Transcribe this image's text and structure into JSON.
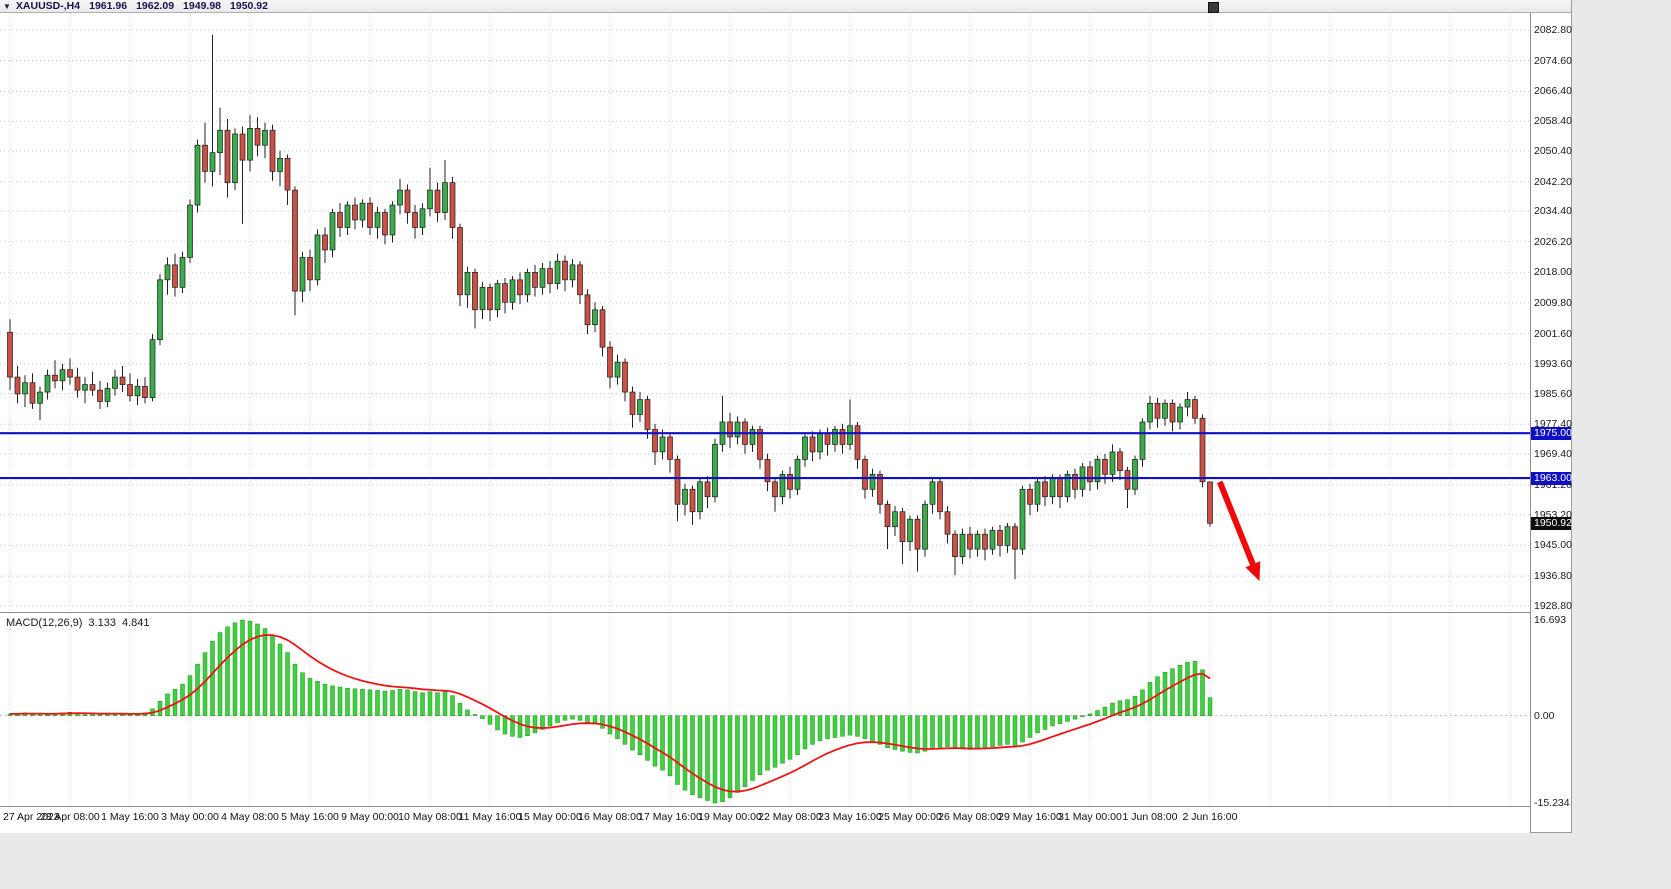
{
  "header": {
    "menu_icon": "▼",
    "symbol_period": "XAUUSD-,H4",
    "open": "1961.96",
    "high": "1962.09",
    "low": "1949.98",
    "close": "1950.92"
  },
  "indicator": {
    "name": "MACD(12,26,9)",
    "macd_value": "3.133",
    "signal_value": "4.841"
  },
  "colors": {
    "bull": "#3aad4a",
    "bear": "#cd5045",
    "candle_outline": "#1c1c1c",
    "wick": "#222222",
    "grid": "#c9c9c9",
    "level_blue": "#0f0fc4",
    "badge_blue_bg": "#0f0fc4",
    "badge_black_bg": "#0d0d0d",
    "hist_green": "#3fd13f",
    "hist_outline": "#1e8f1e",
    "signal_red": "#ee1414",
    "arrow_red": "#f20707"
  },
  "chart_data": [
    {
      "type": "candlestick",
      "symbol": "XAUUSD-",
      "timeframe": "H4",
      "ohlc_display": {
        "open": 1961.96,
        "high": 1962.09,
        "low": 1949.98,
        "close": 1950.92
      },
      "y_axis": {
        "max": 2082.8,
        "min": 1928.8,
        "ticks": [
          "2082.80",
          "2074.60",
          "2066.40",
          "2058.40",
          "2050.40",
          "2042.20",
          "2034.40",
          "2026.20",
          "2018.00",
          "2009.80",
          "2001.60",
          "1993.60",
          "1985.60",
          "1977.40",
          "1969.40",
          "1961.20",
          "1953.20",
          "1945.00",
          "1936.80",
          "1928.80"
        ]
      },
      "x_labels": [
        "27 Apr 2023",
        "28 Apr 08:00",
        "1 May 16:00",
        "3 May 00:00",
        "4 May 08:00",
        "5 May 16:00",
        "9 May 00:00",
        "10 May 08:00",
        "11 May 16:00",
        "15 May 00:00",
        "16 May 08:00",
        "17 May 16:00",
        "19 May 00:00",
        "22 May 08:00",
        "23 May 16:00",
        "25 May 00:00",
        "26 May 08:00",
        "29 May 16:00",
        "31 May 00:00",
        "1 Jun 08:00",
        "2 Jun 16:00"
      ],
      "bars_per_label": 8,
      "levels": [
        {
          "value": 1975.0,
          "label": "1975.00"
        },
        {
          "value": 1963.0,
          "label": "1963.00"
        }
      ],
      "current_price": {
        "value": 1950.92,
        "label": "1950.92"
      },
      "annotations": {
        "arrow": {
          "bar_from": 161.3,
          "price_from": 1962.0,
          "bar_to": 166.6,
          "price_to": 1935.5
        }
      },
      "candles": [
        [
          2002,
          2005.5,
          1986.5,
          1990
        ],
        [
          1990,
          1993,
          1983,
          1985.5
        ],
        [
          1985.5,
          1990.5,
          1982,
          1988.5
        ],
        [
          1988.5,
          1991,
          1981.5,
          1983
        ],
        [
          1983,
          1987.5,
          1978.5,
          1986
        ],
        [
          1986,
          1992,
          1984,
          1990.5
        ],
        [
          1990.5,
          1994.5,
          1987,
          1989
        ],
        [
          1989,
          1993.5,
          1986.5,
          1992
        ],
        [
          1992,
          1995,
          1988,
          1990
        ],
        [
          1990,
          1992.5,
          1984.5,
          1986.5
        ],
        [
          1986.5,
          1990,
          1983,
          1988
        ],
        [
          1988,
          1991.5,
          1985,
          1986.5
        ],
        [
          1986.5,
          1989,
          1981.5,
          1983.5
        ],
        [
          1983.5,
          1988.5,
          1982,
          1987
        ],
        [
          1987,
          1992,
          1985,
          1990
        ],
        [
          1990,
          1993,
          1986,
          1988
        ],
        [
          1988,
          1991,
          1983.5,
          1985
        ],
        [
          1985,
          1989.5,
          1982.5,
          1987.5
        ],
        [
          1987.5,
          1990,
          1983,
          1984.5
        ],
        [
          1984.5,
          2001.5,
          1983.5,
          2000
        ],
        [
          2000,
          2017.5,
          1998.5,
          2016
        ],
        [
          2016,
          2022,
          2012,
          2020
        ],
        [
          2020,
          2023,
          2011.5,
          2014
        ],
        [
          2014,
          2023.5,
          2012.5,
          2022
        ],
        [
          2022,
          2037.5,
          2020.5,
          2036
        ],
        [
          2036,
          2053.5,
          2034,
          2052
        ],
        [
          2052,
          2058,
          2042,
          2045
        ],
        [
          2045,
          2081.5,
          2041,
          2050
        ],
        [
          2050,
          2062,
          2044,
          2056
        ],
        [
          2056,
          2059,
          2038,
          2042
        ],
        [
          2042,
          2056.5,
          2040,
          2055
        ],
        [
          2055,
          2057,
          2031,
          2048
        ],
        [
          2048,
          2060,
          2045,
          2056.5
        ],
        [
          2056.5,
          2059.5,
          2049,
          2052
        ],
        [
          2052,
          2058,
          2048.5,
          2056
        ],
        [
          2056,
          2057.5,
          2042.5,
          2045
        ],
        [
          2045,
          2050.5,
          2041,
          2048.5
        ],
        [
          2048.5,
          2049.5,
          2036,
          2040
        ],
        [
          2040,
          2041,
          2006.5,
          2013
        ],
        [
          2013,
          2023.5,
          2010,
          2022
        ],
        [
          2022,
          2024,
          2013,
          2016
        ],
        [
          2016,
          2029.5,
          2014.5,
          2028
        ],
        [
          2028,
          2030,
          2020.5,
          2024
        ],
        [
          2024,
          2035,
          2022,
          2034
        ],
        [
          2034,
          2036.5,
          2027.5,
          2030
        ],
        [
          2030,
          2037,
          2028,
          2036
        ],
        [
          2036,
          2038,
          2029.5,
          2032
        ],
        [
          2032,
          2037.5,
          2030,
          2036.5
        ],
        [
          2036.5,
          2038,
          2028,
          2030
        ],
        [
          2030,
          2035.5,
          2027,
          2034
        ],
        [
          2034,
          2035,
          2025.5,
          2028
        ],
        [
          2028,
          2037,
          2026,
          2036
        ],
        [
          2036,
          2043,
          2033.5,
          2040
        ],
        [
          2040,
          2041.5,
          2031,
          2034
        ],
        [
          2034,
          2036,
          2027,
          2030
        ],
        [
          2030,
          2036.5,
          2028,
          2035
        ],
        [
          2035,
          2046,
          2033,
          2040
        ],
        [
          2040,
          2042,
          2031.5,
          2034
        ],
        [
          2034,
          2048,
          2032,
          2042
        ],
        [
          2042,
          2043.5,
          2027,
          2030
        ],
        [
          2030,
          2031,
          2009,
          2012
        ],
        [
          2012,
          2019.5,
          2008.5,
          2018
        ],
        [
          2018,
          2019,
          2003,
          2008
        ],
        [
          2008,
          2015.5,
          2005.5,
          2014
        ],
        [
          2014,
          2015,
          2005,
          2008
        ],
        [
          2008,
          2016,
          2006,
          2015
        ],
        [
          2015,
          2016.5,
          2007,
          2010
        ],
        [
          2010,
          2017,
          2008,
          2016
        ],
        [
          2016,
          2018,
          2009.5,
          2012
        ],
        [
          2012,
          2019,
          2010,
          2018
        ],
        [
          2018,
          2020,
          2011.5,
          2014
        ],
        [
          2014,
          2020.5,
          2012,
          2019
        ],
        [
          2019,
          2021,
          2012.5,
          2015
        ],
        [
          2015,
          2023,
          2013.5,
          2021
        ],
        [
          2021,
          2022.5,
          2013,
          2016
        ],
        [
          2016,
          2021.5,
          2014,
          2020
        ],
        [
          2020,
          2021,
          2009.5,
          2012
        ],
        [
          2012,
          2013.5,
          2001.5,
          2004
        ],
        [
          2004,
          2010,
          2002,
          2008
        ],
        [
          2008,
          2009,
          1995.5,
          1998
        ],
        [
          1998,
          1999.5,
          1987,
          1990
        ],
        [
          1990,
          1996,
          1988,
          1994
        ],
        [
          1994,
          1995,
          1983.5,
          1986
        ],
        [
          1986,
          1987.5,
          1976.5,
          1980
        ],
        [
          1980,
          1986,
          1978,
          1984
        ],
        [
          1984,
          1985,
          1973.5,
          1976
        ],
        [
          1976,
          1977.5,
          1966.5,
          1970
        ],
        [
          1970,
          1976,
          1968,
          1974
        ],
        [
          1974,
          1975,
          1964.5,
          1968
        ],
        [
          1968,
          1969,
          1951.5,
          1956
        ],
        [
          1956,
          1961.5,
          1953,
          1960
        ],
        [
          1960,
          1961,
          1950.5,
          1954
        ],
        [
          1954,
          1963,
          1952,
          1962
        ],
        [
          1962,
          1963.5,
          1955,
          1958
        ],
        [
          1958,
          1973.5,
          1956.5,
          1972
        ],
        [
          1972,
          1985,
          1970,
          1978
        ],
        [
          1978,
          1980.5,
          1971,
          1974
        ],
        [
          1974,
          1979.5,
          1972,
          1978
        ],
        [
          1978,
          1979,
          1969.5,
          1972
        ],
        [
          1972,
          1977,
          1970,
          1976
        ],
        [
          1976,
          1977,
          1965.5,
          1968
        ],
        [
          1968,
          1969.5,
          1959.5,
          1962
        ],
        [
          1962,
          1963,
          1954,
          1958
        ],
        [
          1958,
          1965,
          1956,
          1964
        ],
        [
          1964,
          1966,
          1957.5,
          1960
        ],
        [
          1960,
          1969,
          1958.5,
          1968
        ],
        [
          1968,
          1975,
          1966,
          1974
        ],
        [
          1974,
          1975.5,
          1967.5,
          1970
        ],
        [
          1970,
          1976,
          1968,
          1975
        ],
        [
          1975,
          1976.5,
          1969,
          1972
        ],
        [
          1972,
          1977,
          1970,
          1976
        ],
        [
          1976,
          1977.5,
          1969.5,
          1972
        ],
        [
          1972,
          1984,
          1970.5,
          1977
        ],
        [
          1977,
          1978,
          1965.5,
          1968
        ],
        [
          1968,
          1969,
          1957.5,
          1960
        ],
        [
          1960,
          1965.5,
          1958,
          1964
        ],
        [
          1964,
          1965,
          1953.5,
          1956
        ],
        [
          1956,
          1957,
          1944,
          1950
        ],
        [
          1950,
          1955.5,
          1947.5,
          1954
        ],
        [
          1954,
          1955,
          1940,
          1946
        ],
        [
          1946,
          1953,
          1943.5,
          1952
        ],
        [
          1952,
          1953,
          1938,
          1944
        ],
        [
          1944,
          1957,
          1942,
          1956
        ],
        [
          1956,
          1963,
          1953.5,
          1962
        ],
        [
          1962,
          1963,
          1952,
          1954
        ],
        [
          1954,
          1955.5,
          1945.5,
          1948
        ],
        [
          1948,
          1949,
          1937,
          1942
        ],
        [
          1942,
          1949.5,
          1940,
          1948
        ],
        [
          1948,
          1950,
          1941.5,
          1944
        ],
        [
          1944,
          1949,
          1942,
          1948
        ],
        [
          1948,
          1949.5,
          1941,
          1944
        ],
        [
          1944,
          1950,
          1942.5,
          1949
        ],
        [
          1949,
          1950.5,
          1942,
          1945
        ],
        [
          1945,
          1951,
          1943,
          1950
        ],
        [
          1950,
          1951,
          1936,
          1944
        ],
        [
          1944,
          1961,
          1942.5,
          1960
        ],
        [
          1960,
          1961.5,
          1953,
          1956
        ],
        [
          1956,
          1963,
          1954,
          1962
        ],
        [
          1962,
          1963.5,
          1955.5,
          1958
        ],
        [
          1958,
          1964,
          1956,
          1963
        ],
        [
          1963,
          1964,
          1955,
          1958
        ],
        [
          1958,
          1965,
          1956.5,
          1964
        ],
        [
          1964,
          1965.5,
          1957.5,
          1960
        ],
        [
          1960,
          1967,
          1958,
          1966
        ],
        [
          1966,
          1967.5,
          1959.5,
          1962
        ],
        [
          1962,
          1969,
          1960,
          1968
        ],
        [
          1968,
          1969.5,
          1961.5,
          1964
        ],
        [
          1964,
          1972,
          1962,
          1970
        ],
        [
          1970,
          1971,
          1962.5,
          1965
        ],
        [
          1965,
          1966,
          1955,
          1960
        ],
        [
          1960,
          1969,
          1958.5,
          1968
        ],
        [
          1968,
          1979,
          1966,
          1978
        ],
        [
          1978,
          1985,
          1976,
          1983
        ],
        [
          1983,
          1984.5,
          1976.5,
          1979
        ],
        [
          1979,
          1984,
          1977,
          1983
        ],
        [
          1983,
          1984,
          1975.5,
          1978
        ],
        [
          1978,
          1983,
          1976,
          1982
        ],
        [
          1982,
          1986,
          1979.5,
          1984
        ],
        [
          1984,
          1985,
          1977.5,
          1979
        ],
        [
          1979,
          1980,
          1960.5,
          1962
        ],
        [
          1961.96,
          1962.09,
          1949.98,
          1950.92
        ]
      ]
    },
    {
      "type": "bar",
      "name": "MACD(12,26,9)",
      "current": {
        "macd": 3.133,
        "signal": 4.841
      },
      "signal_rule": "EMA9 of values",
      "y_axis": {
        "max": 16.693,
        "min": -15.234,
        "ticks": [
          "16.693",
          "0.00",
          "-15.234"
        ]
      },
      "values": [
        0.3,
        0.4,
        0.5,
        0.4,
        0.3,
        0.2,
        0.4,
        0.5,
        0.6,
        0.5,
        0.4,
        0.3,
        0.2,
        0.3,
        0.4,
        0.3,
        0.2,
        0.3,
        0.5,
        1.2,
        2.5,
        3.8,
        4.6,
        5.5,
        7.0,
        9.0,
        11.0,
        13.0,
        14.5,
        15.5,
        16.2,
        16.693,
        16.5,
        16.0,
        15.2,
        14.0,
        12.5,
        11.0,
        9.0,
        7.5,
        6.5,
        6.0,
        5.5,
        5.2,
        5.0,
        4.8,
        4.7,
        4.6,
        4.5,
        4.4,
        4.3,
        4.4,
        4.6,
        4.5,
        4.2,
        4.0,
        4.2,
        4.0,
        4.2,
        3.5,
        2.2,
        1.0,
        0.2,
        -0.5,
        -1.5,
        -2.5,
        -3.2,
        -3.6,
        -3.8,
        -3.5,
        -3.0,
        -2.4,
        -1.8,
        -1.2,
        -0.8,
        -0.6,
        -0.8,
        -1.2,
        -1.5,
        -2.2,
        -3.2,
        -4.0,
        -5.0,
        -6.0,
        -6.8,
        -7.8,
        -8.8,
        -9.5,
        -10.5,
        -12.0,
        -13.0,
        -13.8,
        -14.3,
        -14.8,
        -15.234,
        -15.0,
        -14.3,
        -13.4,
        -12.4,
        -11.3,
        -10.3,
        -9.5,
        -9.0,
        -8.3,
        -7.6,
        -6.8,
        -5.8,
        -5.0,
        -4.4,
        -4.0,
        -3.8,
        -3.6,
        -3.4,
        -3.6,
        -4.0,
        -4.5,
        -5.0,
        -5.6,
        -5.9,
        -6.2,
        -6.4,
        -6.5,
        -6.2,
        -5.8,
        -5.5,
        -5.4,
        -5.6,
        -5.8,
        -5.9,
        -5.8,
        -5.6,
        -5.4,
        -5.2,
        -5.0,
        -5.2,
        -4.6,
        -3.8,
        -3.0,
        -2.4,
        -1.8,
        -1.4,
        -1.0,
        -0.6,
        -0.2,
        0.3,
        0.9,
        1.5,
        2.2,
        2.6,
        2.8,
        3.4,
        4.5,
        5.8,
        6.8,
        7.6,
        8.2,
        8.8,
        9.3,
        9.5,
        8.0,
        3.133
      ]
    }
  ]
}
